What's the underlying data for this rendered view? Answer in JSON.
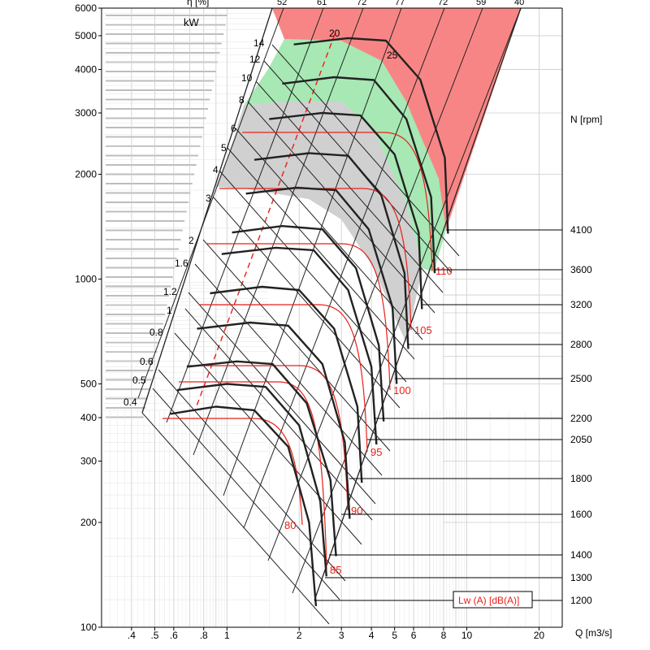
{
  "colors": {
    "red_zone": "#f88585",
    "green_zone": "#a7e8b4",
    "gray_zone": "#d0d0d0",
    "curve": "#222222",
    "accent": "#e8201a",
    "grid_light": "#cccccc",
    "grid_dark": "#777777"
  },
  "chart_data": {
    "type": "line",
    "title": "",
    "header_label_partial": "η [%]",
    "power_unit_label": "kW",
    "xlabel": "Q [m3/s]",
    "ylabel": "",
    "right_axis_title": "N [rpm]",
    "legend": "Lw (A) [dB(A)]",
    "x_scale": "log",
    "y_scale": "log",
    "xlim": [
      0.3,
      25
    ],
    "ylim": [
      100,
      6000
    ],
    "x_ticks": [
      {
        "value": 0.4,
        "label": ".4"
      },
      {
        "value": 0.5,
        "label": ".5"
      },
      {
        "value": 0.6,
        "label": ".6"
      },
      {
        "value": 0.8,
        "label": ".8"
      },
      {
        "value": 1,
        "label": "1"
      },
      {
        "value": 2,
        "label": "2"
      },
      {
        "value": 3,
        "label": "3"
      },
      {
        "value": 4,
        "label": "4"
      },
      {
        "value": 5,
        "label": "5"
      },
      {
        "value": 6,
        "label": "6"
      },
      {
        "value": 8,
        "label": "8"
      },
      {
        "value": 10,
        "label": "10"
      },
      {
        "value": 20,
        "label": "20"
      }
    ],
    "y_ticks": [
      {
        "value": 100,
        "label": "100"
      },
      {
        "value": 200,
        "label": "200"
      },
      {
        "value": 300,
        "label": "300"
      },
      {
        "value": 400,
        "label": "400"
      },
      {
        "value": 500,
        "label": "500"
      },
      {
        "value": 1000,
        "label": "1000"
      },
      {
        "value": 2000,
        "label": "2000"
      },
      {
        "value": 3000,
        "label": "3000"
      },
      {
        "value": 4000,
        "label": "4000"
      },
      {
        "value": 5000,
        "label": "5000"
      },
      {
        "value": 6000,
        "label": "6000"
      }
    ],
    "efficiency_top_labels": [
      "52",
      "61",
      "72",
      "77",
      "72",
      "59",
      "40"
    ],
    "rpm_labels": [
      "4100",
      "3600",
      "3200",
      "2800",
      "2500",
      "2200",
      "2050",
      "1800",
      "1600",
      "1400",
      "1300",
      "1200"
    ],
    "sound_labels": [
      "80",
      "85",
      "90",
      "95",
      "100",
      "105",
      "110"
    ],
    "power_labels": [
      "0.4",
      "0.5",
      "0.6",
      "0.8",
      "1",
      "1.2",
      "1.6",
      "2",
      "3",
      "4",
      "5",
      "6",
      "8",
      "10",
      "12",
      "14",
      "20",
      "25"
    ],
    "series": [
      {
        "name": "1200",
        "points": [
          [
            0.58,
            410
          ],
          [
            0.9,
            430
          ],
          [
            1.3,
            420
          ],
          [
            1.8,
            330
          ],
          [
            2.2,
            200
          ],
          [
            2.35,
            115
          ]
        ]
      },
      {
        "name": "1300",
        "points": [
          [
            0.62,
            480
          ],
          [
            1.0,
            500
          ],
          [
            1.45,
            490
          ],
          [
            2.0,
            380
          ],
          [
            2.45,
            230
          ],
          [
            2.6,
            140
          ]
        ]
      },
      {
        "name": "1400",
        "points": [
          [
            0.68,
            560
          ],
          [
            1.1,
            580
          ],
          [
            1.55,
            570
          ],
          [
            2.15,
            440
          ],
          [
            2.7,
            265
          ],
          [
            2.85,
            160
          ]
        ]
      },
      {
        "name": "1600",
        "points": [
          [
            0.75,
            720
          ],
          [
            1.25,
            750
          ],
          [
            1.8,
            735
          ],
          [
            2.5,
            570
          ],
          [
            3.1,
            340
          ],
          [
            3.25,
            205
          ]
        ]
      },
      {
        "name": "1800",
        "points": [
          [
            0.85,
            910
          ],
          [
            1.4,
            950
          ],
          [
            2.0,
            930
          ],
          [
            2.8,
            720
          ],
          [
            3.5,
            430
          ],
          [
            3.65,
            260
          ]
        ]
      },
      {
        "name": "2050",
        "points": [
          [
            0.95,
            1180
          ],
          [
            1.6,
            1230
          ],
          [
            2.3,
            1210
          ],
          [
            3.2,
            930
          ],
          [
            4.0,
            560
          ],
          [
            4.2,
            335
          ]
        ]
      },
      {
        "name": "2200",
        "points": [
          [
            1.05,
            1360
          ],
          [
            1.7,
            1420
          ],
          [
            2.5,
            1390
          ],
          [
            3.45,
            1075
          ],
          [
            4.3,
            645
          ],
          [
            4.5,
            390
          ]
        ]
      },
      {
        "name": "2500",
        "points": [
          [
            1.2,
            1760
          ],
          [
            1.95,
            1830
          ],
          [
            2.85,
            1800
          ],
          [
            3.9,
            1390
          ],
          [
            4.9,
            830
          ],
          [
            5.1,
            500
          ]
        ]
      },
      {
        "name": "2800",
        "points": [
          [
            1.3,
            2200
          ],
          [
            2.2,
            2300
          ],
          [
            3.2,
            2260
          ],
          [
            4.4,
            1740
          ],
          [
            5.5,
            1040
          ],
          [
            5.7,
            630
          ]
        ]
      },
      {
        "name": "3200",
        "points": [
          [
            1.5,
            2880
          ],
          [
            2.5,
            3000
          ],
          [
            3.6,
            2950
          ],
          [
            5.0,
            2280
          ],
          [
            6.3,
            1360
          ],
          [
            6.5,
            820
          ]
        ]
      },
      {
        "name": "3600",
        "points": [
          [
            1.7,
            3640
          ],
          [
            2.8,
            3800
          ],
          [
            4.1,
            3730
          ],
          [
            5.6,
            2880
          ],
          [
            7.1,
            1720
          ],
          [
            7.35,
            1040
          ]
        ]
      },
      {
        "name": "4100",
        "points": [
          [
            1.9,
            4720
          ],
          [
            3.2,
            4920
          ],
          [
            4.6,
            4840
          ],
          [
            6.4,
            3740
          ],
          [
            8.1,
            2230
          ],
          [
            8.35,
            1350
          ]
        ]
      }
    ]
  }
}
